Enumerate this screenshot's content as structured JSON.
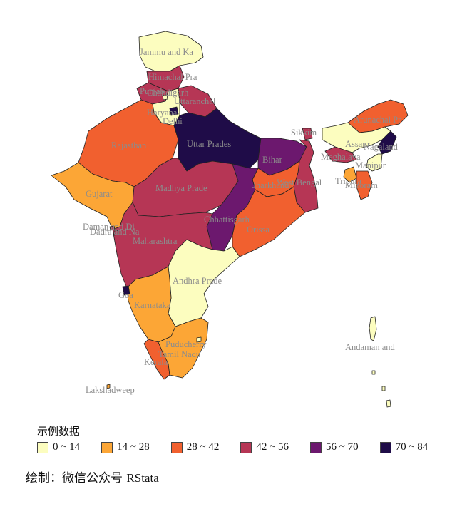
{
  "colors": {
    "c0": "#fcfdbf",
    "c1": "#fca636",
    "c2": "#f1602f",
    "c3": "#b63655",
    "c4": "#6c186e",
    "c5": "#1f0c48"
  },
  "legend": {
    "title": "示例数据",
    "items": [
      {
        "label": "0 ~ 14",
        "color": "#fcfdbf"
      },
      {
        "label": "14 ~ 28",
        "color": "#fca636"
      },
      {
        "label": "28 ~ 42",
        "color": "#f1602f"
      },
      {
        "label": "42 ~ 56",
        "color": "#b63655"
      },
      {
        "label": "56 ~ 70",
        "color": "#6c186e"
      },
      {
        "label": "70 ~ 84",
        "color": "#1f0c48"
      }
    ]
  },
  "credit": {
    "prefix": "绘制：微信公众号 ",
    "name": "RStata"
  },
  "regions": [
    {
      "name": "Jammu and Ka",
      "class": "0 ~ 14"
    },
    {
      "name": "Himachal Pra",
      "class": "42 ~ 56"
    },
    {
      "name": "Punjab",
      "class": "42 ~ 56"
    },
    {
      "name": "Chandigarh",
      "class": "0 ~ 14"
    },
    {
      "name": "Uttaranchal",
      "class": "42 ~ 56"
    },
    {
      "name": "Haryana",
      "class": "0 ~ 14"
    },
    {
      "name": "Delhi",
      "class": "70 ~ 84"
    },
    {
      "name": "Rajasthan",
      "class": "28 ~ 42"
    },
    {
      "name": "Uttar Prades",
      "class": "70 ~ 84"
    },
    {
      "name": "Bihar",
      "class": "56 ~ 70"
    },
    {
      "name": "Sikkim",
      "class": "42 ~ 56"
    },
    {
      "name": "Arunachal Pr",
      "class": "28 ~ 42"
    },
    {
      "name": "Assam",
      "class": "0 ~ 14"
    },
    {
      "name": "Nagaland",
      "class": "70 ~ 84"
    },
    {
      "name": "Meghalaya",
      "class": "42 ~ 56"
    },
    {
      "name": "Manipur",
      "class": "0 ~ 14"
    },
    {
      "name": "Tripura",
      "class": "14 ~ 28"
    },
    {
      "name": "Mizoram",
      "class": "28 ~ 42"
    },
    {
      "name": "West Bengal",
      "class": "42 ~ 56"
    },
    {
      "name": "Jharkhand",
      "class": "28 ~ 42"
    },
    {
      "name": "Gujarat",
      "class": "14 ~ 28"
    },
    {
      "name": "Madhya Prade",
      "class": "42 ~ 56"
    },
    {
      "name": "Chhattisgarh",
      "class": "56 ~ 70"
    },
    {
      "name": "Orissa",
      "class": "28 ~ 42"
    },
    {
      "name": "Daman and Di",
      "class": "42 ~ 56"
    },
    {
      "name": "Dadra and Na",
      "class": "42 ~ 56"
    },
    {
      "name": "Maharashtra",
      "class": "42 ~ 56"
    },
    {
      "name": "Andhra Prade",
      "class": "0 ~ 14"
    },
    {
      "name": "Goa",
      "class": "70 ~ 84"
    },
    {
      "name": "Karnataka",
      "class": "14 ~ 28"
    },
    {
      "name": "Puducherry",
      "class": "0 ~ 14"
    },
    {
      "name": "Tamil Nadu",
      "class": "14 ~ 28"
    },
    {
      "name": "Kerala",
      "class": "28 ~ 42"
    },
    {
      "name": "Lakshadweep",
      "class": "14 ~ 28"
    },
    {
      "name": "Andaman and",
      "class": "0 ~ 14"
    }
  ]
}
